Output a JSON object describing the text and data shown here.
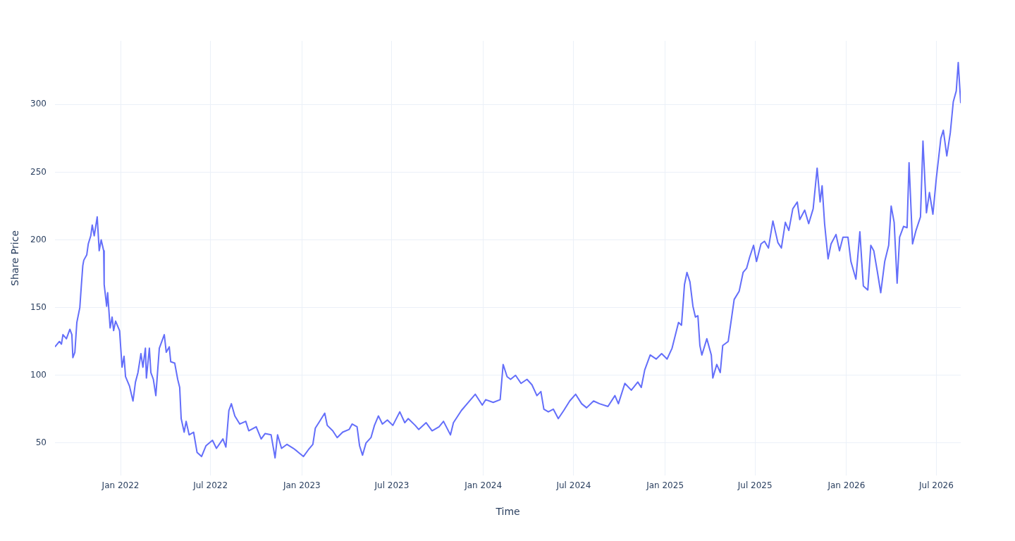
{
  "chart_data": {
    "type": "line",
    "xlabel": "Time",
    "ylabel": "Share Price",
    "xlim": [
      "2021-08-22",
      "2026-08-19"
    ],
    "xticks": [
      {
        "value": "2022-01-01",
        "label": "Jan 2022"
      },
      {
        "value": "2022-07-01",
        "label": "Jul 2022"
      },
      {
        "value": "2023-01-01",
        "label": "Jan 2023"
      },
      {
        "value": "2023-07-01",
        "label": "Jul 2023"
      },
      {
        "value": "2024-01-01",
        "label": "Jan 2024"
      },
      {
        "value": "2024-07-01",
        "label": "Jul 2024"
      },
      {
        "value": "2025-01-01",
        "label": "Jan 2025"
      },
      {
        "value": "2025-07-01",
        "label": "Jul 2025"
      },
      {
        "value": "2026-01-01",
        "label": "Jan 2026"
      },
      {
        "value": "2026-07-01",
        "label": "Jul 2026"
      }
    ],
    "ylim": [
      26,
      347
    ],
    "yticks": [
      50,
      100,
      150,
      200,
      250,
      300
    ],
    "grid": true,
    "legend": false,
    "marker": "none",
    "line_style": "solid",
    "series": [
      {
        "color": "#636efa",
        "x": [
          "2021-08-22",
          "2021-08-31",
          "2021-09-04",
          "2021-09-07",
          "2021-09-14",
          "2021-09-21",
          "2021-09-25",
          "2021-09-27",
          "2021-10-01",
          "2021-10-05",
          "2021-10-11",
          "2021-10-14",
          "2021-10-17",
          "2021-10-19",
          "2021-10-25",
          "2021-10-28",
          "2021-11-02",
          "2021-11-05",
          "2021-11-09",
          "2021-11-15",
          "2021-11-19",
          "2021-11-23",
          "2021-11-28",
          "2021-11-29",
          "2021-12-04",
          "2021-12-06",
          "2021-12-11",
          "2021-12-15",
          "2021-12-18",
          "2021-12-22",
          "2021-12-30",
          "2022-01-04",
          "2022-01-08",
          "2022-01-11",
          "2022-01-19",
          "2022-01-26",
          "2022-01-31",
          "2022-02-05",
          "2022-02-11",
          "2022-02-15",
          "2022-02-20",
          "2022-02-22",
          "2022-02-28",
          "2022-03-03",
          "2022-03-08",
          "2022-03-13",
          "2022-03-20",
          "2022-03-30",
          "2022-04-03",
          "2022-04-09",
          "2022-04-12",
          "2022-04-20",
          "2022-04-26",
          "2022-04-30",
          "2022-05-03",
          "2022-05-09",
          "2022-05-13",
          "2022-05-19",
          "2022-05-28",
          "2022-06-04",
          "2022-06-13",
          "2022-06-22",
          "2022-07-05",
          "2022-07-13",
          "2022-07-26",
          "2022-08-01",
          "2022-08-07",
          "2022-08-12",
          "2022-08-19",
          "2022-08-29",
          "2022-09-10",
          "2022-09-16",
          "2022-10-01",
          "2022-10-11",
          "2022-10-19",
          "2022-10-31",
          "2022-11-08",
          "2022-11-13",
          "2022-11-21",
          "2022-12-02",
          "2022-12-15",
          "2022-12-22",
          "2023-01-04",
          "2023-01-14",
          "2023-01-23",
          "2023-01-28",
          "2023-02-04",
          "2023-02-16",
          "2023-02-21",
          "2023-03-04",
          "2023-03-13",
          "2023-03-24",
          "2023-04-06",
          "2023-04-12",
          "2023-04-22",
          "2023-04-27",
          "2023-05-03",
          "2023-05-10",
          "2023-05-20",
          "2023-05-27",
          "2023-06-04",
          "2023-06-12",
          "2023-06-22",
          "2023-07-03",
          "2023-07-17",
          "2023-07-27",
          "2023-08-03",
          "2023-08-17",
          "2023-08-24",
          "2023-09-08",
          "2023-09-20",
          "2023-10-04",
          "2023-10-13",
          "2023-10-27",
          "2023-11-02",
          "2023-11-18",
          "2023-12-02",
          "2023-12-16",
          "2023-12-30",
          "2024-01-06",
          "2024-01-21",
          "2024-02-04",
          "2024-02-10",
          "2024-02-18",
          "2024-02-25",
          "2024-03-06",
          "2024-03-17",
          "2024-03-29",
          "2024-04-08",
          "2024-04-18",
          "2024-04-26",
          "2024-05-02",
          "2024-05-11",
          "2024-05-21",
          "2024-05-31",
          "2024-06-11",
          "2024-06-23",
          "2024-07-05",
          "2024-07-17",
          "2024-07-27",
          "2024-08-10",
          "2024-08-22",
          "2024-09-08",
          "2024-09-22",
          "2024-09-29",
          "2024-10-12",
          "2024-10-25",
          "2024-11-07",
          "2024-11-14",
          "2024-11-21",
          "2024-12-02",
          "2024-12-14",
          "2024-12-25",
          "2025-01-05",
          "2025-01-15",
          "2025-01-28",
          "2025-02-03",
          "2025-02-09",
          "2025-02-14",
          "2025-02-20",
          "2025-02-26",
          "2025-03-03",
          "2025-03-08",
          "2025-03-12",
          "2025-03-16",
          "2025-03-26",
          "2025-04-04",
          "2025-04-07",
          "2025-04-15",
          "2025-04-22",
          "2025-04-27",
          "2025-05-08",
          "2025-05-15",
          "2025-05-20",
          "2025-05-30",
          "2025-06-07",
          "2025-06-14",
          "2025-06-20",
          "2025-06-28",
          "2025-07-04",
          "2025-07-13",
          "2025-07-20",
          "2025-07-28",
          "2025-08-06",
          "2025-08-16",
          "2025-08-23",
          "2025-08-31",
          "2025-09-07",
          "2025-09-15",
          "2025-09-24",
          "2025-09-29",
          "2025-10-09",
          "2025-10-17",
          "2025-10-26",
          "2025-11-03",
          "2025-11-09",
          "2025-11-13",
          "2025-11-18",
          "2025-11-25",
          "2025-12-01",
          "2025-12-11",
          "2025-12-18",
          "2025-12-25",
          "2026-01-04",
          "2026-01-10",
          "2026-01-20",
          "2026-01-28",
          "2026-02-04",
          "2026-02-13",
          "2026-02-19",
          "2026-02-25",
          "2026-03-04",
          "2026-03-11",
          "2026-03-19",
          "2026-03-27",
          "2026-04-01",
          "2026-04-07",
          "2026-04-13",
          "2026-04-18",
          "2026-04-26",
          "2026-05-03",
          "2026-05-07",
          "2026-05-14",
          "2026-05-21",
          "2026-05-30",
          "2026-06-04",
          "2026-06-11",
          "2026-06-17",
          "2026-06-24",
          "2026-07-01",
          "2026-07-10",
          "2026-07-15",
          "2026-07-22",
          "2026-07-29",
          "2026-08-04",
          "2026-08-10",
          "2026-08-14",
          "2026-08-19"
        ],
        "values": [
          121,
          125,
          123,
          130,
          127,
          134,
          130,
          113,
          117,
          139,
          150,
          166,
          181,
          185,
          189,
          197,
          203,
          211,
          203,
          217,
          192,
          200,
          192,
          167,
          151,
          161,
          135,
          143,
          133,
          140,
          133,
          106,
          114,
          99,
          92,
          81,
          95,
          102,
          116,
          106,
          120,
          98,
          120,
          102,
          97,
          85,
          120,
          130,
          117,
          121,
          110,
          109,
          97,
          91,
          68,
          58,
          66,
          56,
          58,
          43,
          40,
          48,
          52,
          46,
          53,
          47,
          74,
          79,
          70,
          64,
          66,
          59,
          62,
          53,
          57,
          56,
          39,
          56,
          46,
          49,
          46,
          44,
          40,
          45,
          49,
          61,
          65,
          72,
          63,
          59,
          54,
          58,
          60,
          64,
          62,
          48,
          41,
          50,
          54,
          63,
          70,
          64,
          67,
          63,
          73,
          65,
          68,
          63,
          60,
          65,
          59,
          62,
          66,
          56,
          65,
          74,
          80,
          86,
          78,
          82,
          80,
          82,
          108,
          99,
          97,
          100,
          94,
          97,
          93,
          85,
          88,
          75,
          73,
          75,
          68,
          74,
          81,
          86,
          79,
          76,
          81,
          79,
          77,
          85,
          79,
          94,
          89,
          95,
          91,
          104,
          115,
          112,
          116,
          112,
          120,
          139,
          137,
          167,
          176,
          169,
          151,
          143,
          144,
          122,
          115,
          127,
          115,
          98,
          108,
          102,
          122,
          125,
          143,
          156,
          162,
          176,
          179,
          187,
          196,
          184,
          197,
          199,
          194,
          214,
          198,
          194,
          213,
          207,
          223,
          228,
          215,
          222,
          212,
          223,
          253,
          228,
          240,
          212,
          186,
          197,
          204,
          192,
          202,
          202,
          184,
          171,
          206,
          166,
          163,
          196,
          192,
          177,
          161,
          184,
          196,
          225,
          213,
          168,
          202,
          210,
          209,
          257,
          197,
          207,
          217,
          273,
          220,
          235,
          219,
          246,
          275,
          281,
          262,
          279,
          302,
          310,
          331,
          301
        ]
      }
    ]
  }
}
